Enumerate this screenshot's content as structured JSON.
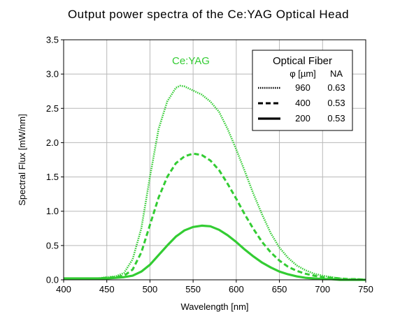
{
  "chart_data": {
    "type": "line",
    "title": "Output power spectra of the Ce:YAG Optical Head",
    "xlabel": "Wavelength [nm]",
    "ylabel": "Spectral Flux [mW/nm]",
    "xlim": [
      400,
      750
    ],
    "ylim": [
      0,
      3.5
    ],
    "xticks": [
      "400",
      "450",
      "500",
      "550",
      "600",
      "650",
      "700",
      "750"
    ],
    "yticks": [
      "0.0",
      "0.5",
      "1.0",
      "1.5",
      "2.0",
      "2.5",
      "3.0",
      "3.5"
    ],
    "grid": true,
    "annotation": {
      "text": "Ce:YAG",
      "color": "#33cc33"
    },
    "legend": {
      "placement": "top-right",
      "title": "Optical Fiber",
      "header_phi": "φ [µm]",
      "header_na": "NA"
    },
    "line_color": "#33cc33",
    "series": [
      {
        "phi": "960",
        "na": "0.63",
        "style": "dotted",
        "x": [
          400,
          440,
          450,
          460,
          470,
          480,
          490,
          500,
          510,
          520,
          530,
          535,
          540,
          550,
          560,
          570,
          580,
          590,
          600,
          610,
          620,
          630,
          640,
          650,
          660,
          670,
          680,
          690,
          700,
          710,
          720,
          730,
          740,
          750
        ],
        "y": [
          0.02,
          0.02,
          0.04,
          0.05,
          0.1,
          0.3,
          0.75,
          1.5,
          2.2,
          2.6,
          2.8,
          2.83,
          2.82,
          2.76,
          2.7,
          2.6,
          2.45,
          2.2,
          1.9,
          1.58,
          1.25,
          0.95,
          0.68,
          0.47,
          0.32,
          0.21,
          0.14,
          0.09,
          0.06,
          0.04,
          0.02,
          0.01,
          0.01,
          0.0
        ]
      },
      {
        "phi": "400",
        "na": "0.53",
        "style": "dashed",
        "x": [
          400,
          440,
          450,
          460,
          470,
          480,
          490,
          500,
          510,
          520,
          530,
          540,
          550,
          560,
          570,
          580,
          590,
          600,
          610,
          620,
          630,
          640,
          650,
          660,
          670,
          680,
          690,
          700,
          710,
          720,
          730,
          740,
          750
        ],
        "y": [
          0.02,
          0.02,
          0.03,
          0.04,
          0.06,
          0.15,
          0.4,
          0.8,
          1.2,
          1.5,
          1.7,
          1.8,
          1.84,
          1.82,
          1.74,
          1.6,
          1.4,
          1.18,
          0.95,
          0.74,
          0.55,
          0.4,
          0.28,
          0.19,
          0.13,
          0.09,
          0.06,
          0.04,
          0.03,
          0.02,
          0.01,
          0.01,
          0.0
        ]
      },
      {
        "phi": "200",
        "na": "0.53",
        "style": "solid",
        "x": [
          400,
          440,
          450,
          460,
          470,
          480,
          490,
          500,
          510,
          520,
          530,
          540,
          550,
          560,
          570,
          580,
          590,
          600,
          610,
          620,
          630,
          640,
          650,
          660,
          670,
          680,
          690,
          700,
          710,
          720,
          730,
          740,
          750
        ],
        "y": [
          0.02,
          0.02,
          0.02,
          0.03,
          0.04,
          0.06,
          0.12,
          0.22,
          0.36,
          0.5,
          0.63,
          0.72,
          0.77,
          0.79,
          0.78,
          0.73,
          0.65,
          0.55,
          0.44,
          0.34,
          0.25,
          0.18,
          0.12,
          0.08,
          0.05,
          0.03,
          0.02,
          0.01,
          0.01,
          0.0,
          0.0,
          0.0,
          0.0
        ]
      }
    ]
  }
}
